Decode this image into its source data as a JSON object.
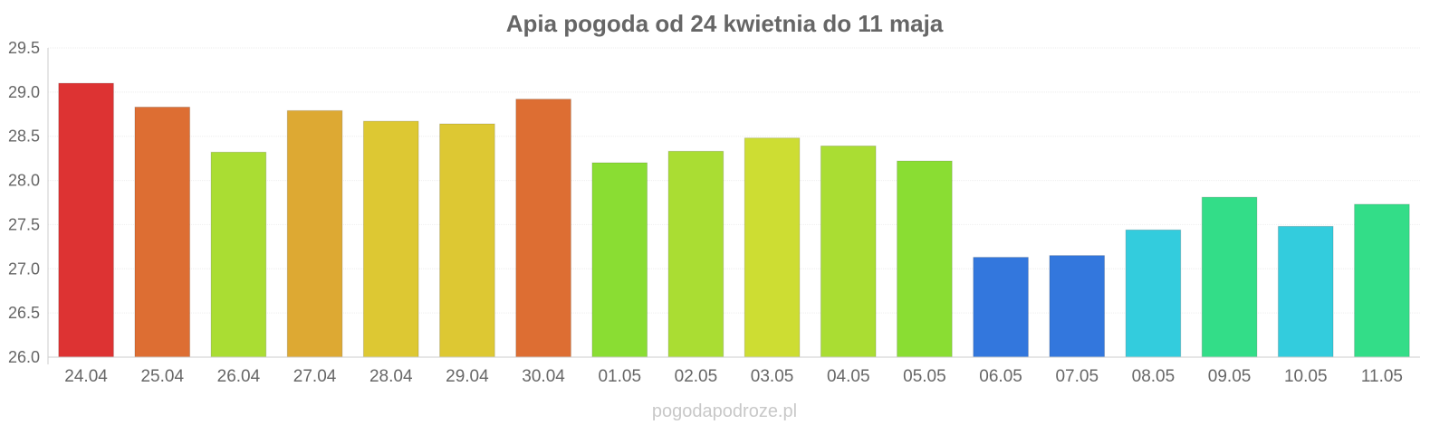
{
  "chart_data": {
    "type": "bar",
    "title": "Apia pogoda od 24 kwietnia do 11 maja",
    "categories": [
      "24.04",
      "25.04",
      "26.04",
      "27.04",
      "28.04",
      "29.04",
      "30.04",
      "01.05",
      "02.05",
      "03.05",
      "04.05",
      "05.05",
      "06.05",
      "07.05",
      "08.05",
      "09.05",
      "10.05",
      "11.05"
    ],
    "values": [
      29.1,
      28.83,
      28.32,
      28.79,
      28.67,
      28.64,
      28.92,
      28.2,
      28.33,
      28.48,
      28.39,
      28.22,
      27.13,
      27.15,
      27.44,
      27.81,
      27.48,
      27.73
    ],
    "colors": [
      "#dd3333",
      "#dd6e33",
      "#aadd33",
      "#dda933",
      "#ddc833",
      "#ddc833",
      "#dd6e33",
      "#8add33",
      "#aadd33",
      "#cddd33",
      "#aadd33",
      "#8add33",
      "#3377dd",
      "#3377dd",
      "#33ccdd",
      "#33dd88",
      "#33ccdd",
      "#33dd88"
    ],
    "yticks": [
      "26.0",
      "26.5",
      "27.0",
      "27.5",
      "28.0",
      "28.5",
      "29.0",
      "29.5"
    ],
    "ylim": [
      26.0,
      29.5
    ],
    "xlabel": "",
    "ylabel": "",
    "grid": true,
    "legend": "none"
  },
  "watermark": "pogodapodroze.pl"
}
